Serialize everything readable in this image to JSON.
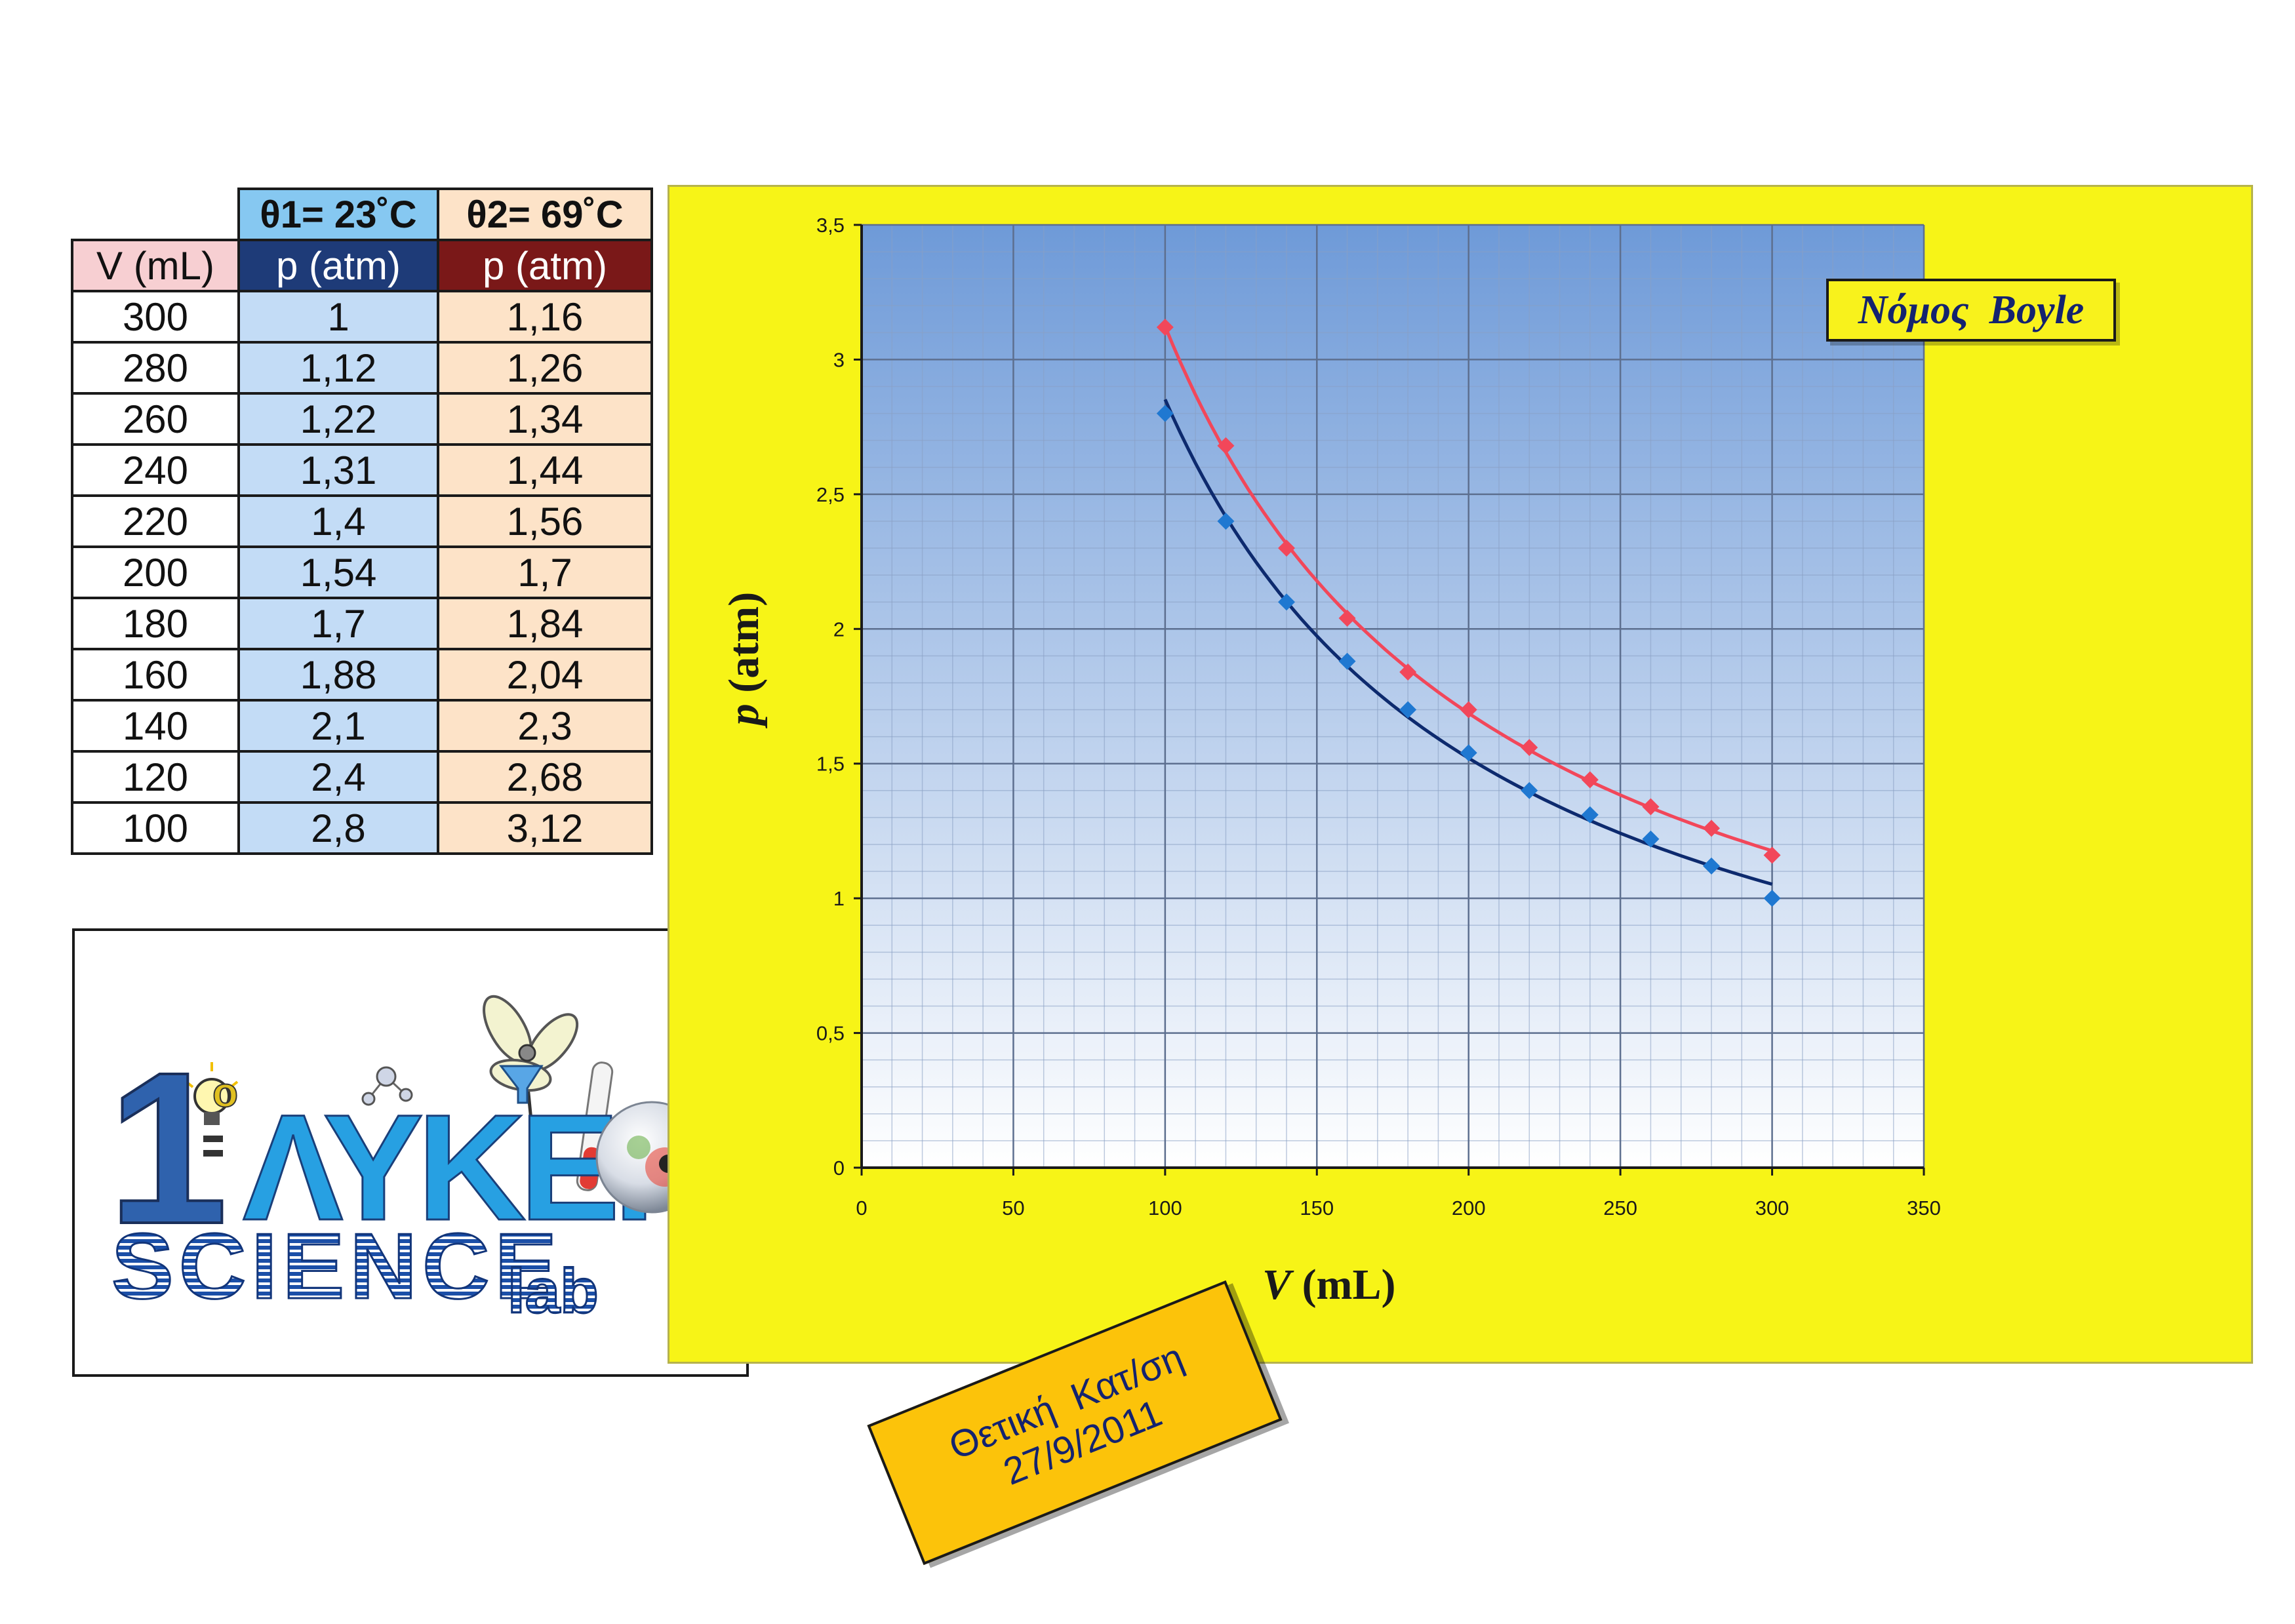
{
  "table": {
    "headers": {
      "theta1": "θ1= 23˚C",
      "theta2": "θ2= 69˚C",
      "v": "V (mL)",
      "p1": "p (atm)",
      "p2": "p (atm)"
    },
    "rows": [
      {
        "v": "300",
        "p1": "1",
        "p2": "1,16"
      },
      {
        "v": "280",
        "p1": "1,12",
        "p2": "1,26"
      },
      {
        "v": "260",
        "p1": "1,22",
        "p2": "1,34"
      },
      {
        "v": "240",
        "p1": "1,31",
        "p2": "1,44"
      },
      {
        "v": "220",
        "p1": "1,4",
        "p2": "1,56"
      },
      {
        "v": "200",
        "p1": "1,54",
        "p2": "1,7"
      },
      {
        "v": "180",
        "p1": "1,7",
        "p2": "1,84"
      },
      {
        "v": "160",
        "p1": "1,88",
        "p2": "2,04"
      },
      {
        "v": "140",
        "p1": "2,1",
        "p2": "2,3"
      },
      {
        "v": "120",
        "p1": "2,4",
        "p2": "2,68"
      },
      {
        "v": "100",
        "p1": "2,8",
        "p2": "3,12"
      }
    ]
  },
  "logo": {
    "number": "1",
    "superscript": "o",
    "word": "ΛΥΚΕΙΟ",
    "science": "SCIENCE",
    "lab": "lab"
  },
  "sticker": {
    "line1": "Θετική  Κατ/ση",
    "line2": "27/9/2011"
  },
  "colors": {
    "panel": "#f7f417",
    "plot_top": "#6e9ad8",
    "plot_bottom": "#ffffff",
    "series_theta1": "#1f78d1",
    "fit_theta1": "#0d2a6e",
    "series_theta2": "#f2475a",
    "fit_theta2": "#f2475a"
  },
  "chart_data": {
    "type": "scatter",
    "title": "Νόμος  Boyle",
    "xlabel_var": "V",
    "xlabel_unit": " (mL)",
    "ylabel_var": "p",
    "ylabel_unit": " (atm)",
    "xlim": [
      0,
      350
    ],
    "ylim": [
      0,
      3.5
    ],
    "x_ticks": [
      0,
      50,
      100,
      150,
      200,
      250,
      300,
      350
    ],
    "x_tick_labels": [
      "0",
      "50",
      "100",
      "150",
      "200",
      "250",
      "300",
      "350"
    ],
    "y_ticks": [
      0,
      0.5,
      1,
      1.5,
      2,
      2.5,
      3,
      3.5
    ],
    "y_tick_labels": [
      "0",
      "0,5",
      "1",
      "1,5",
      "2",
      "2,5",
      "3",
      "3,5"
    ],
    "grid": true,
    "marker": "diamond",
    "series": [
      {
        "x": [
          300,
          280,
          260,
          240,
          220,
          200,
          180,
          160,
          140,
          120,
          100
        ],
        "y": [
          1,
          1.12,
          1.22,
          1.31,
          1.4,
          1.54,
          1.7,
          1.88,
          2.1,
          2.4,
          2.8
        ],
        "trendline": "power"
      },
      {
        "x": [
          300,
          280,
          260,
          240,
          220,
          200,
          180,
          160,
          140,
          120,
          100
        ],
        "y": [
          1.16,
          1.26,
          1.34,
          1.44,
          1.56,
          1.7,
          1.84,
          2.04,
          2.3,
          2.68,
          3.12
        ],
        "trendline": "power"
      }
    ]
  }
}
